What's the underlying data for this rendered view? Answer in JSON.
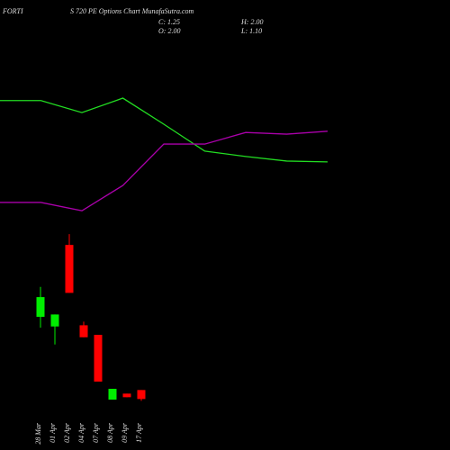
{
  "chart_data": [
    {
      "type": "candlestick",
      "title": "FORTI",
      "subtitle": "S 720 PE Options Chart MunafaSutra.com",
      "annotations": [
        "C: 1.25",
        "H: 2.00",
        "O: 2.00",
        "L: 1.10"
      ],
      "categories": [
        "28 Mar",
        "01 Apr",
        "02 Apr",
        "04 Apr",
        "07 Apr",
        "08 Apr",
        "09 Apr",
        "17 Apr"
      ],
      "open": [
        8.1,
        7.3,
        14.1,
        7.4,
        6.6,
        1.2,
        1.7,
        2.0
      ],
      "high": [
        10.6,
        8.3,
        15.0,
        7.7,
        6.6,
        2.1,
        1.7,
        2.0
      ],
      "low": [
        7.2,
        5.8,
        10.1,
        6.4,
        2.7,
        1.2,
        1.4,
        1.1
      ],
      "close": [
        9.75,
        8.3,
        10.1,
        6.4,
        2.7,
        2.1,
        1.4,
        1.25
      ],
      "up_color": "#00ee00",
      "down_color": "#ff0000",
      "ylim": [
        0,
        34
      ]
    },
    {
      "type": "line",
      "categories": [
        null,
        null,
        null,
        null,
        null,
        null,
        null,
        null,
        null
      ],
      "series": [
        {
          "color": "#22dd22",
          "values": [
            75.7,
            75.7,
            72.8,
            76.3,
            70.0,
            63.5,
            62.2,
            61.1,
            60.9
          ]
        },
        {
          "color": "#aa00aa",
          "values": [
            51.1,
            51.1,
            49.1,
            55.2,
            65.2,
            65.2,
            68.0,
            67.6,
            68.3
          ]
        }
      ],
      "ylim": [
        0,
        100
      ]
    }
  ]
}
